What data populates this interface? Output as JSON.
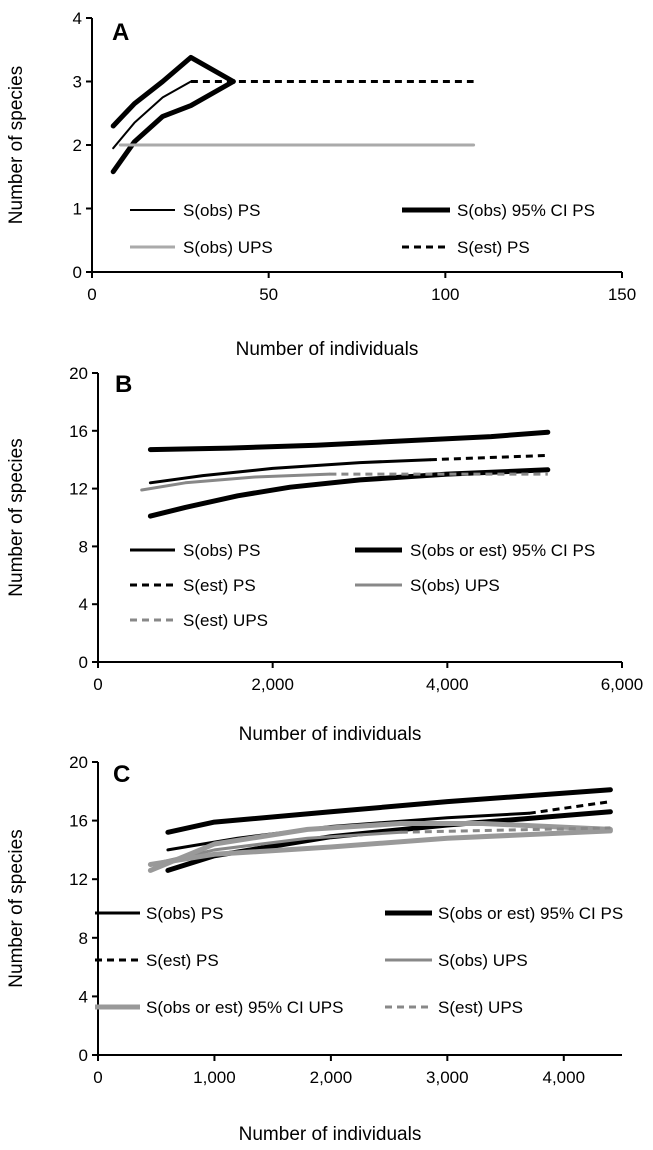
{
  "chart_data": [
    {
      "type": "line",
      "panel_label": "A",
      "xlabel": "Number of individuals",
      "ylabel": "Number of species",
      "xlim": [
        0,
        150
      ],
      "ylim": [
        0,
        4
      ],
      "xticks": [
        0,
        50,
        100,
        150
      ],
      "xtick_labels": [
        "0",
        "50",
        "100",
        "150"
      ],
      "yticks": [
        0,
        1,
        2,
        3,
        4
      ],
      "ytick_labels": [
        "0",
        "1",
        "2",
        "3",
        "4"
      ],
      "grid": false,
      "legend_position": "bottom",
      "series": [
        {
          "name": "S(obs) PS",
          "color": "#000000",
          "style": "solid",
          "weight": "thin",
          "x": [
            6,
            12,
            20,
            28
          ],
          "y": [
            1.95,
            2.35,
            2.75,
            3.0
          ]
        },
        {
          "name": "S(obs) 95% CI PS",
          "color": "#000000",
          "style": "solid",
          "weight": "thick",
          "x": [
            6,
            12,
            20,
            28,
            40
          ],
          "y": [
            2.3,
            2.65,
            3.0,
            3.38,
            3.0
          ]
        },
        {
          "name": "",
          "color": "#000000",
          "style": "solid",
          "weight": "thick",
          "x": [
            6,
            12,
            20,
            28,
            40
          ],
          "y": [
            1.58,
            2.05,
            2.45,
            2.62,
            3.0
          ]
        },
        {
          "name": "S(obs) UPS",
          "color": "#aaaaaa",
          "style": "solid",
          "weight": "medium",
          "x": [
            8,
            108
          ],
          "y": [
            2.0,
            2.0
          ]
        },
        {
          "name": "S(est) PS",
          "color": "#000000",
          "style": "dashed",
          "weight": "medium",
          "x": [
            28,
            108
          ],
          "y": [
            3.0,
            3.0
          ]
        }
      ]
    },
    {
      "type": "line",
      "panel_label": "B",
      "xlabel": "Number of individuals",
      "ylabel": "Number of species",
      "xlim": [
        0,
        6000
      ],
      "ylim": [
        0,
        20
      ],
      "xticks": [
        0,
        2000,
        4000,
        6000
      ],
      "xtick_labels": [
        "0",
        "2,000",
        "4,000",
        "6,000"
      ],
      "yticks": [
        0,
        4,
        8,
        12,
        16,
        20
      ],
      "ytick_labels": [
        "0",
        "4",
        "8",
        "12",
        "16",
        "20"
      ],
      "grid": false,
      "legend_position": "bottom",
      "series": [
        {
          "name": "S(obs) PS",
          "color": "#000000",
          "style": "solid",
          "weight": "medium",
          "x": [
            600,
            1200,
            2000,
            3000,
            3800
          ],
          "y": [
            12.4,
            12.9,
            13.4,
            13.8,
            14.0
          ]
        },
        {
          "name": "S(obs or est) 95% CI PS",
          "color": "#000000",
          "style": "solid",
          "weight": "thick",
          "x": [
            600,
            1500,
            2500,
            3500,
            4500,
            5150
          ],
          "y": [
            14.7,
            14.8,
            15.0,
            15.3,
            15.6,
            15.9
          ]
        },
        {
          "name": "",
          "color": "#000000",
          "style": "solid",
          "weight": "thick",
          "x": [
            600,
            1000,
            1600,
            2200,
            3000,
            4000,
            5150
          ],
          "y": [
            10.1,
            10.7,
            11.5,
            12.1,
            12.6,
            13.0,
            13.3
          ]
        },
        {
          "name": "S(est) PS",
          "color": "#000000",
          "style": "dashed",
          "weight": "medium",
          "x": [
            3800,
            5150
          ],
          "y": [
            14.0,
            14.3
          ]
        },
        {
          "name": "S(obs) UPS",
          "color": "#888888",
          "style": "solid",
          "weight": "medium",
          "x": [
            500,
            1000,
            1800,
            2650
          ],
          "y": [
            11.9,
            12.4,
            12.8,
            13.0
          ]
        },
        {
          "name": "S(est) UPS",
          "color": "#888888",
          "style": "dashed",
          "weight": "medium",
          "x": [
            2650,
            5150
          ],
          "y": [
            13.0,
            13.0
          ]
        }
      ]
    },
    {
      "type": "line",
      "panel_label": "C",
      "xlabel": "Number of individuals",
      "ylabel": "Number of species",
      "xlim": [
        0,
        4500
      ],
      "ylim": [
        0,
        20
      ],
      "xticks": [
        0,
        1000,
        2000,
        3000,
        4000
      ],
      "xtick_labels": [
        "0",
        "1,000",
        "2,000",
        "3,000",
        "4,000"
      ],
      "yticks": [
        0,
        4,
        8,
        12,
        16,
        20
      ],
      "ytick_labels": [
        "0",
        "4",
        "8",
        "12",
        "16",
        "20"
      ],
      "grid": false,
      "legend_position": "left-bottom",
      "series": [
        {
          "name": "S(obs) PS",
          "color": "#000000",
          "style": "solid",
          "weight": "medium",
          "x": [
            600,
            1200,
            2000,
            3000,
            3700
          ],
          "y": [
            14.0,
            14.8,
            15.6,
            16.2,
            16.5
          ]
        },
        {
          "name": "S(obs or est) 95% CI PS",
          "color": "#000000",
          "style": "solid",
          "weight": "thick",
          "x": [
            600,
            1000,
            2000,
            3000,
            4400
          ],
          "y": [
            15.2,
            15.9,
            16.6,
            17.3,
            18.1
          ]
        },
        {
          "name": "",
          "color": "#000000",
          "style": "solid",
          "weight": "thick",
          "x": [
            600,
            1000,
            2000,
            3000,
            4400
          ],
          "y": [
            12.6,
            13.6,
            14.9,
            15.7,
            16.6
          ]
        },
        {
          "name": "S(est) PS",
          "color": "#000000",
          "style": "dashed",
          "weight": "medium",
          "x": [
            3700,
            4400
          ],
          "y": [
            16.5,
            17.3
          ]
        },
        {
          "name": "S(obs) UPS",
          "color": "#888888",
          "style": "solid",
          "weight": "medium",
          "x": [
            450,
            1000,
            1800,
            2600
          ],
          "y": [
            13.0,
            14.0,
            14.8,
            15.2
          ]
        },
        {
          "name": "S(obs or est) 95% CI UPS",
          "color": "#999999",
          "style": "solid",
          "weight": "thick",
          "x": [
            450,
            1000,
            2000,
            3000,
            4400
          ],
          "y": [
            13.0,
            13.7,
            14.2,
            14.8,
            15.3
          ]
        },
        {
          "name": "",
          "color": "#999999",
          "style": "solid",
          "weight": "thick",
          "x": [
            450,
            1000,
            1800,
            2600,
            3300,
            4400
          ],
          "y": [
            12.6,
            14.4,
            15.4,
            15.8,
            15.8,
            15.4
          ]
        },
        {
          "name": "S(est) UPS",
          "color": "#888888",
          "style": "dashed",
          "weight": "medium",
          "x": [
            2600,
            4400
          ],
          "y": [
            15.2,
            15.5
          ]
        }
      ]
    }
  ]
}
